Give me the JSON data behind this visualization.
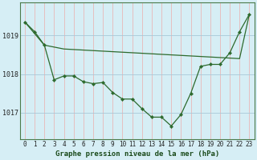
{
  "title": "Graphe pression niveau de la mer (hPa)",
  "background_color": "#d6eef5",
  "vgrid_color": "#e8b8b8",
  "hgrid_color": "#a8c8d8",
  "line_color": "#2d6a2d",
  "x_labels": [
    "0",
    "1",
    "2",
    "3",
    "4",
    "5",
    "6",
    "7",
    "8",
    "9",
    "10",
    "11",
    "12",
    "13",
    "14",
    "15",
    "16",
    "17",
    "18",
    "19",
    "20",
    "21",
    "22",
    "23"
  ],
  "y_ticks": [
    1017,
    1018,
    1019
  ],
  "ylim": [
    1016.3,
    1019.85
  ],
  "xlim": [
    -0.5,
    23.5
  ],
  "line1_x": [
    0,
    2,
    4,
    22,
    23
  ],
  "line1_y": [
    1019.35,
    1018.75,
    1018.65,
    1018.4,
    1019.55
  ],
  "line2_x": [
    0,
    1,
    2,
    3,
    4,
    5,
    6,
    7,
    8,
    9,
    10,
    11,
    12,
    13,
    14,
    15,
    16,
    17,
    18,
    19,
    20,
    21,
    22,
    23
  ],
  "line2_y": [
    1019.35,
    1019.1,
    1018.75,
    1017.85,
    1017.95,
    1017.95,
    1017.8,
    1017.75,
    1017.78,
    1017.52,
    1017.35,
    1017.35,
    1017.1,
    1016.88,
    1016.88,
    1016.65,
    1016.95,
    1017.5,
    1018.2,
    1018.25,
    1018.25,
    1018.55,
    1019.1,
    1019.55
  ],
  "title_fontsize": 6.5,
  "tick_fontsize": 5.5,
  "ylabel_fontsize": 6
}
